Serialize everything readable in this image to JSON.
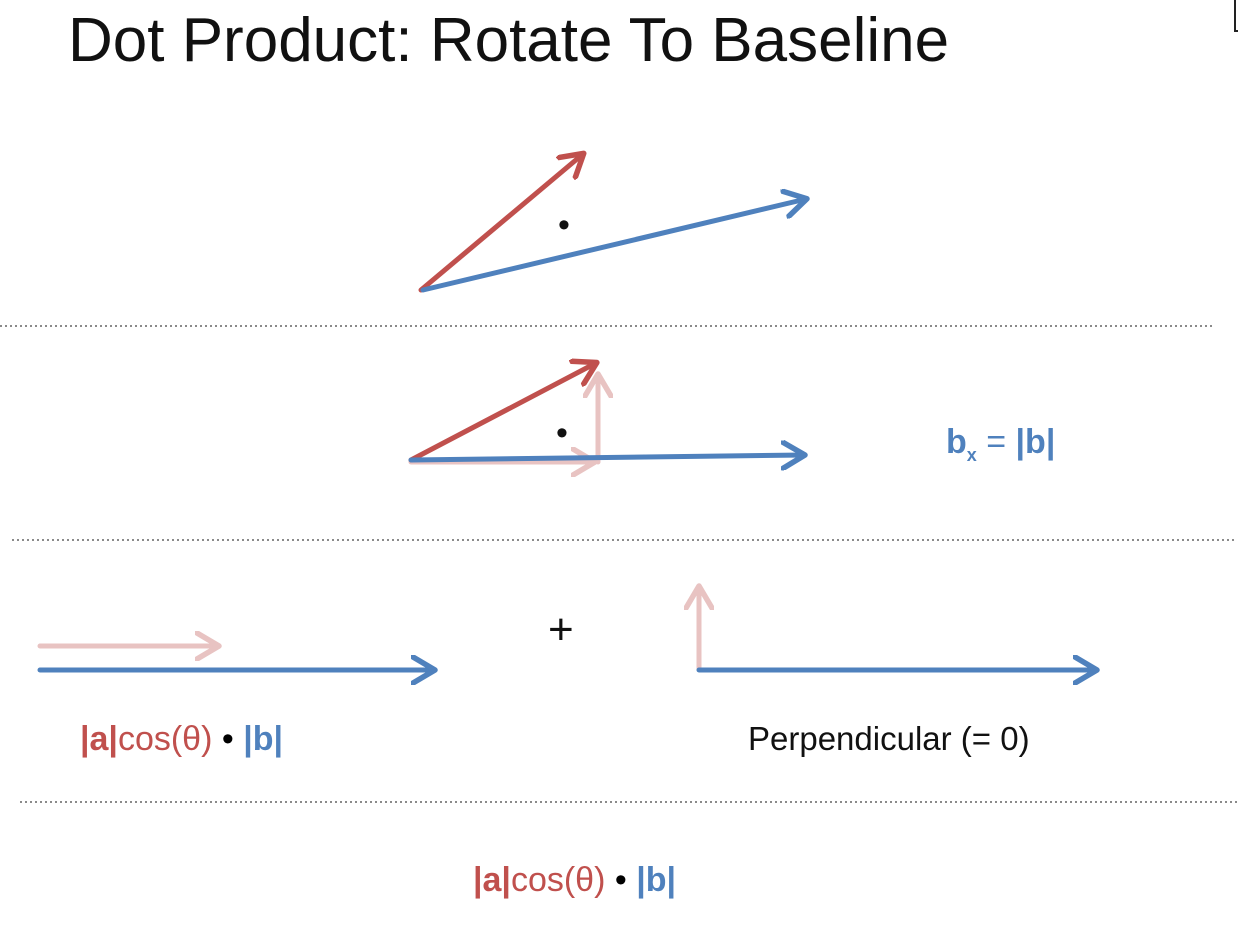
{
  "title": "Dot Product: Rotate To Baseline",
  "dot_symbol": "•",
  "plus_symbol": "+",
  "bx_formula": {
    "b": "b",
    "sub_x": "x",
    "equals": " = ",
    "abs_b": "|b|"
  },
  "lower_formula": {
    "abs_a": "|a|",
    "cos": "cos(θ)",
    "dot": " • ",
    "abs_b": "|b|"
  },
  "perpendicular_label": "Perpendicular (= 0)",
  "result_formula": {
    "abs_a": "|a|",
    "cos": "cos(θ)",
    "dot": " • ",
    "abs_b": "|b|"
  },
  "colors": {
    "vector_a": "#c0504d",
    "vector_b": "#4f81bd",
    "vector_a_faded": "#e8c3c2",
    "separator": "#8a8a8a"
  }
}
